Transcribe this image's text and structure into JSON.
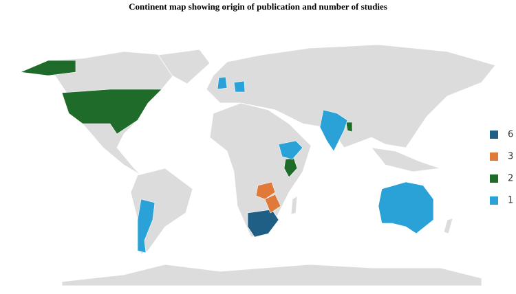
{
  "chart_data": {
    "type": "choropleth",
    "title": "Continent map showing origin of publication and number of studies",
    "legend": [
      {
        "value": 6,
        "color": "#1f5f85"
      },
      {
        "value": 3,
        "color": "#e07a3a"
      },
      {
        "value": 2,
        "color": "#1e6b2a"
      },
      {
        "value": 1,
        "color": "#2aa2d8"
      }
    ],
    "regions": [
      6,
      3,
      3,
      2,
      2,
      2,
      2,
      1,
      1,
      1,
      1,
      1,
      1
    ]
  }
}
